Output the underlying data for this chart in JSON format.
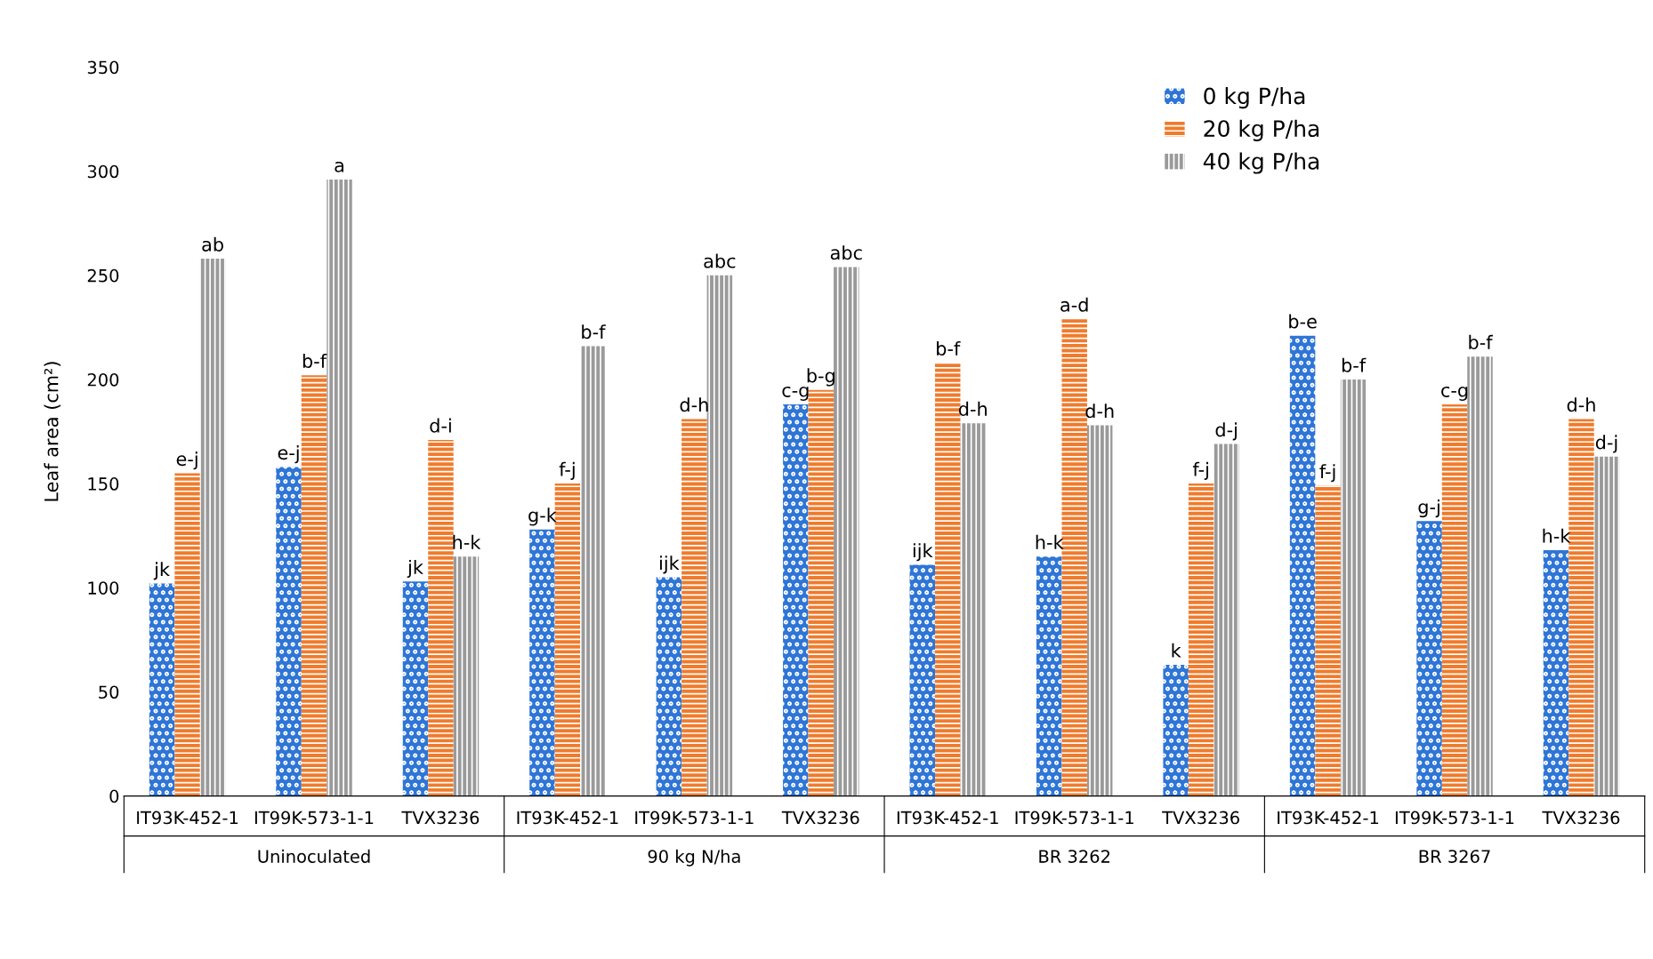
{
  "chart_data": {
    "type": "bar",
    "ylabel": "Leaf area (cm²)",
    "categories": [
      "IT93K-452-1",
      "IT99K-573-1-1",
      "TVX3236",
      "IT93K-452-1",
      "IT99K-573-1-1",
      "TVX3236",
      "IT93K-452-1",
      "IT99K-573-1-1",
      "TVX3236",
      "IT93K-452-1",
      "IT99K-573-1-1",
      "TVX3236"
    ],
    "annotations": [
      "Uninoculated",
      "90 kg N/ha",
      "BR 3262",
      "BR 3267"
    ],
    "series": [
      {
        "name": "0 kg P/ha",
        "color": "#2e75d6",
        "values": [
          102,
          158,
          103,
          128,
          105,
          188,
          111,
          115,
          63,
          221,
          132,
          118
        ],
        "value_labels": [
          "jk",
          "e-j",
          "jk",
          "g-k",
          "ijk",
          "c-g",
          "ijk",
          "h-k",
          "k",
          "b-e",
          "g-j",
          "h-k"
        ]
      },
      {
        "name": "20 kg P/ha",
        "color": "#f07b2c",
        "values": [
          155,
          202,
          171,
          150,
          181,
          195,
          208,
          229,
          150,
          149,
          188,
          181
        ],
        "value_labels": [
          "e-j",
          "b-f",
          "d-i",
          "f-j",
          "d-h",
          "b-g",
          "b-f",
          "a-d",
          "f-j",
          "f-j",
          "c-g",
          "d-h"
        ]
      },
      {
        "name": "40 kg P/ha",
        "color": "#9a9a9a",
        "values": [
          258,
          296,
          115,
          216,
          250,
          254,
          179,
          178,
          169,
          200,
          211,
          163
        ],
        "value_labels": [
          "ab",
          "a",
          "h-k",
          "b-f",
          "abc",
          "abc",
          "d-h",
          "d-h",
          "d-j",
          "b-f",
          "b-f",
          "d-j"
        ]
      }
    ],
    "ylim": [
      0,
      350
    ],
    "yticks": [
      0,
      50,
      100,
      150,
      200,
      250,
      300,
      350
    ],
    "grid": false,
    "legend": "top right"
  }
}
